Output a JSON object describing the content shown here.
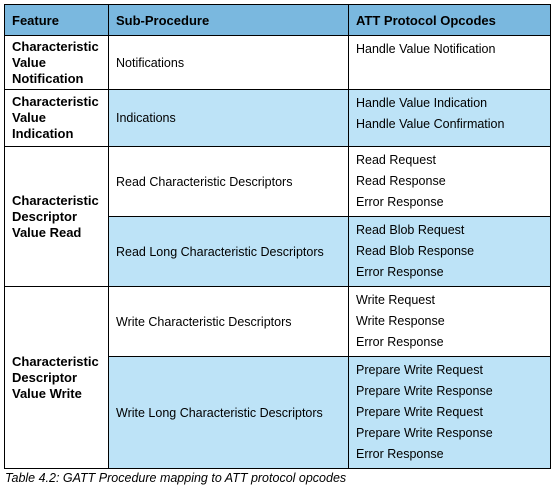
{
  "table": {
    "headers": [
      "Feature",
      "Sub-Procedure",
      "ATT Protocol Opcodes"
    ],
    "rows": [
      {
        "feature": [
          "Characteristic",
          "Value",
          "Notification"
        ],
        "sub": [
          {
            "name": "Notifications",
            "opcodes": [
              "Handle Value Notification"
            ]
          }
        ]
      },
      {
        "feature": [
          "Characteristic",
          "Value",
          "Indication"
        ],
        "sub": [
          {
            "name": "Indications",
            "opcodes": [
              "Handle Value Indication",
              "Handle Value Confirmation"
            ]
          }
        ]
      },
      {
        "feature": [
          "Characteristic",
          "Descriptor",
          "Value Read"
        ],
        "sub": [
          {
            "name": "Read Characteristic Descriptors",
            "opcodes": [
              "Read Request",
              "Read Response",
              "Error Response"
            ]
          },
          {
            "name": "Read Long Characteristic Descriptors",
            "opcodes": [
              "Read Blob Request",
              "Read Blob Response",
              "Error Response"
            ]
          }
        ]
      },
      {
        "feature": [
          "Characteristic",
          "Descriptor",
          "Value Write"
        ],
        "sub": [
          {
            "name": "Write Characteristic Descriptors",
            "opcodes": [
              "Write Request",
              "Write Response",
              "Error Response"
            ]
          },
          {
            "name": "Write Long Characteristic Descriptors",
            "opcodes": [
              "Prepare Write Request",
              "Prepare Write Response",
              "Prepare Write Request",
              "Prepare Write Response",
              "Error Response"
            ]
          }
        ]
      }
    ]
  },
  "caption": "Table 4.2:  GATT Procedure mapping to ATT protocol opcodes"
}
